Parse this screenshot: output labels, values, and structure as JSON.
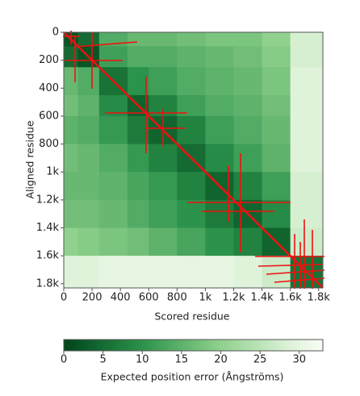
{
  "chart_data": {
    "type": "heatmap",
    "x_label": "Scored residue",
    "y_label": "Aligned residue",
    "colorbar_label": "Expected position error (Ångströms)",
    "x_edges": [
      0,
      100,
      250,
      450,
      600,
      800,
      1000,
      1200,
      1400,
      1600,
      1830
    ],
    "y_edges": [
      0,
      100,
      250,
      450,
      600,
      800,
      1000,
      1200,
      1400,
      1600,
      1830
    ],
    "z": [
      [
        2,
        5,
        14,
        16,
        16,
        17,
        18,
        18,
        20,
        28
      ],
      [
        5,
        2,
        12,
        14,
        14,
        15,
        16,
        17,
        19,
        28
      ],
      [
        16,
        14,
        6,
        10,
        12,
        14,
        15,
        16,
        18,
        29
      ],
      [
        17,
        15,
        9,
        4,
        8,
        12,
        14,
        15,
        17,
        29
      ],
      [
        15,
        14,
        11,
        7,
        4,
        8,
        12,
        14,
        16,
        29
      ],
      [
        17,
        16,
        14,
        11,
        8,
        5,
        9,
        12,
        15,
        29
      ],
      [
        16,
        16,
        15,
        13,
        11,
        8,
        4,
        8,
        12,
        28
      ],
      [
        17,
        17,
        16,
        14,
        12,
        10,
        7,
        4,
        9,
        28
      ],
      [
        20,
        19,
        18,
        17,
        15,
        13,
        10,
        8,
        4,
        27
      ],
      [
        29,
        29,
        30,
        30,
        30,
        30,
        30,
        29,
        27,
        6
      ]
    ],
    "xlim": [
      0,
      1830
    ],
    "ylim": [
      1830,
      0
    ],
    "xticks": [
      0,
      200,
      400,
      600,
      800,
      {
        "value": 1000,
        "label": "1k"
      },
      {
        "value": 1200,
        "label": "1.2k"
      },
      {
        "value": 1400,
        "label": "1.4k"
      },
      {
        "value": 1600,
        "label": "1.6k"
      },
      {
        "value": 1800,
        "label": "1.8k"
      }
    ],
    "yticks": [
      0,
      200,
      400,
      600,
      800,
      {
        "value": 1000,
        "label": "1k"
      },
      {
        "value": 1200,
        "label": "1.2k"
      },
      {
        "value": 1400,
        "label": "1.4k"
      },
      {
        "value": 1600,
        "label": "1.6k"
      },
      {
        "value": 1800,
        "label": "1.8k"
      }
    ],
    "clim": [
      0,
      33
    ],
    "cticks": [
      0,
      5,
      10,
      15,
      20,
      25,
      30
    ]
  }
}
